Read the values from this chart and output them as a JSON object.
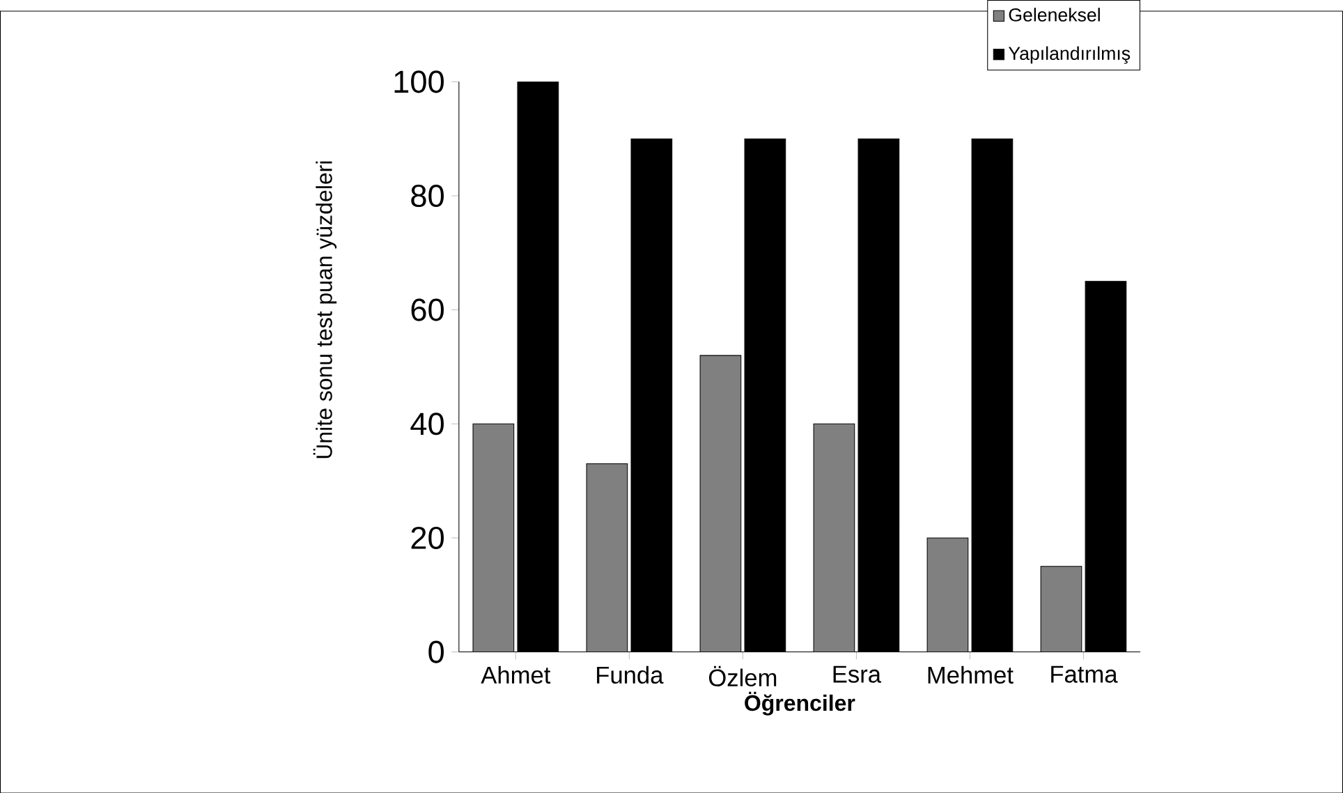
{
  "chart_data": {
    "type": "bar",
    "xlabel": "Öğrenciler",
    "ylabel": "Ünite sonu test puan yüzdeleri",
    "categories": [
      "Ahmet",
      "Funda",
      "Özlem",
      "Esra",
      "Mehmet",
      "Fatma"
    ],
    "series": [
      {
        "name": "Geleneksel",
        "color": "#808080",
        "values": [
          40,
          33,
          52,
          40,
          20,
          15
        ]
      },
      {
        "name": "Yapılandırılmış",
        "color": "#000000",
        "values": [
          100,
          90,
          90,
          90,
          90,
          65
        ]
      }
    ],
    "ylim": [
      0,
      100
    ],
    "yticks": [
      0,
      20,
      40,
      60,
      80,
      100
    ],
    "grid": false,
    "legend": "top right"
  }
}
